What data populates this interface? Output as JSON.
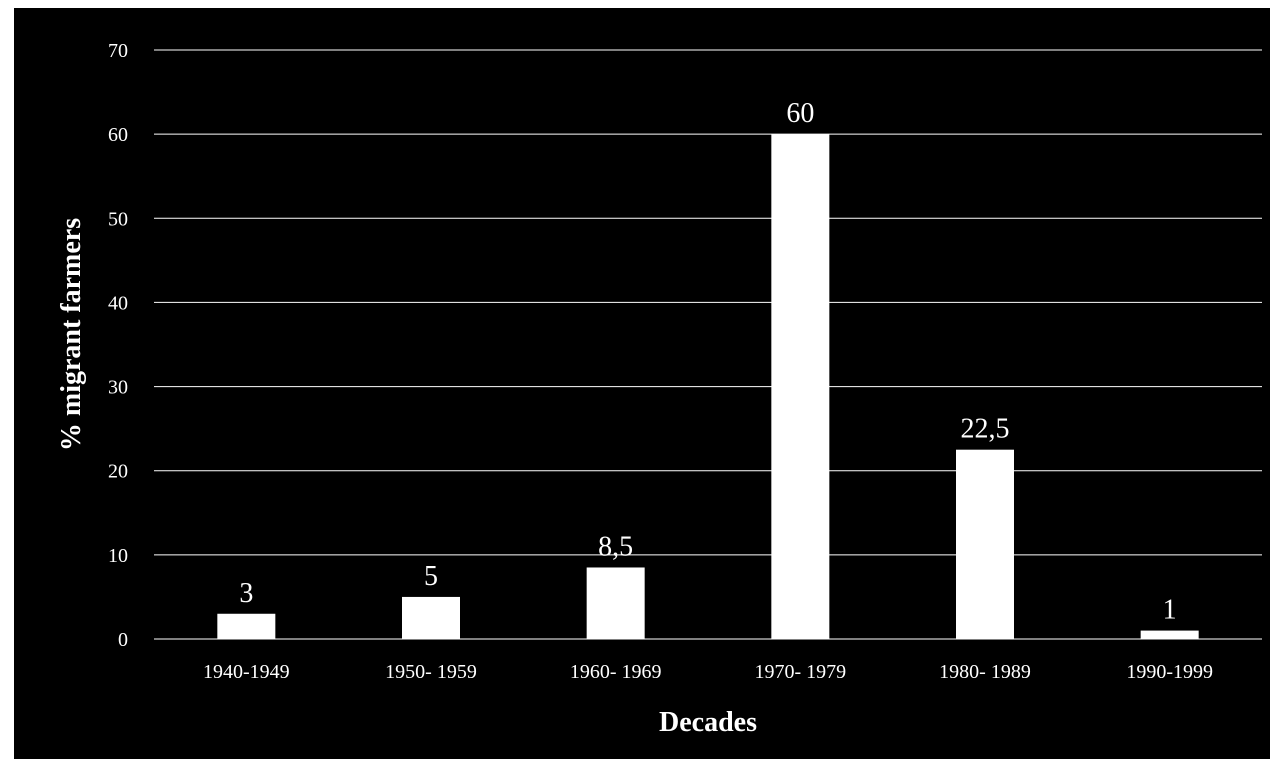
{
  "chart_data": {
    "type": "bar",
    "title": "",
    "xlabel": "Decades",
    "ylabel": "% migrant farmers",
    "categories": [
      "1940-1949",
      "1950- 1959",
      "1960- 1969",
      "1970- 1979",
      "1980- 1989",
      "1990-1999"
    ],
    "values": [
      3,
      5,
      8.5,
      60,
      22.5,
      1
    ],
    "value_labels": [
      "3",
      "5",
      "8,5",
      "60",
      "22,5",
      "1"
    ],
    "ylim": [
      0,
      70
    ],
    "yticks": [
      0,
      10,
      20,
      30,
      40,
      50,
      60,
      70
    ],
    "grid": true,
    "legend": "none",
    "colors": {
      "background": "#000000",
      "bar": "#ffffff",
      "grid": "#ffffff",
      "text": "#ffffff"
    }
  }
}
